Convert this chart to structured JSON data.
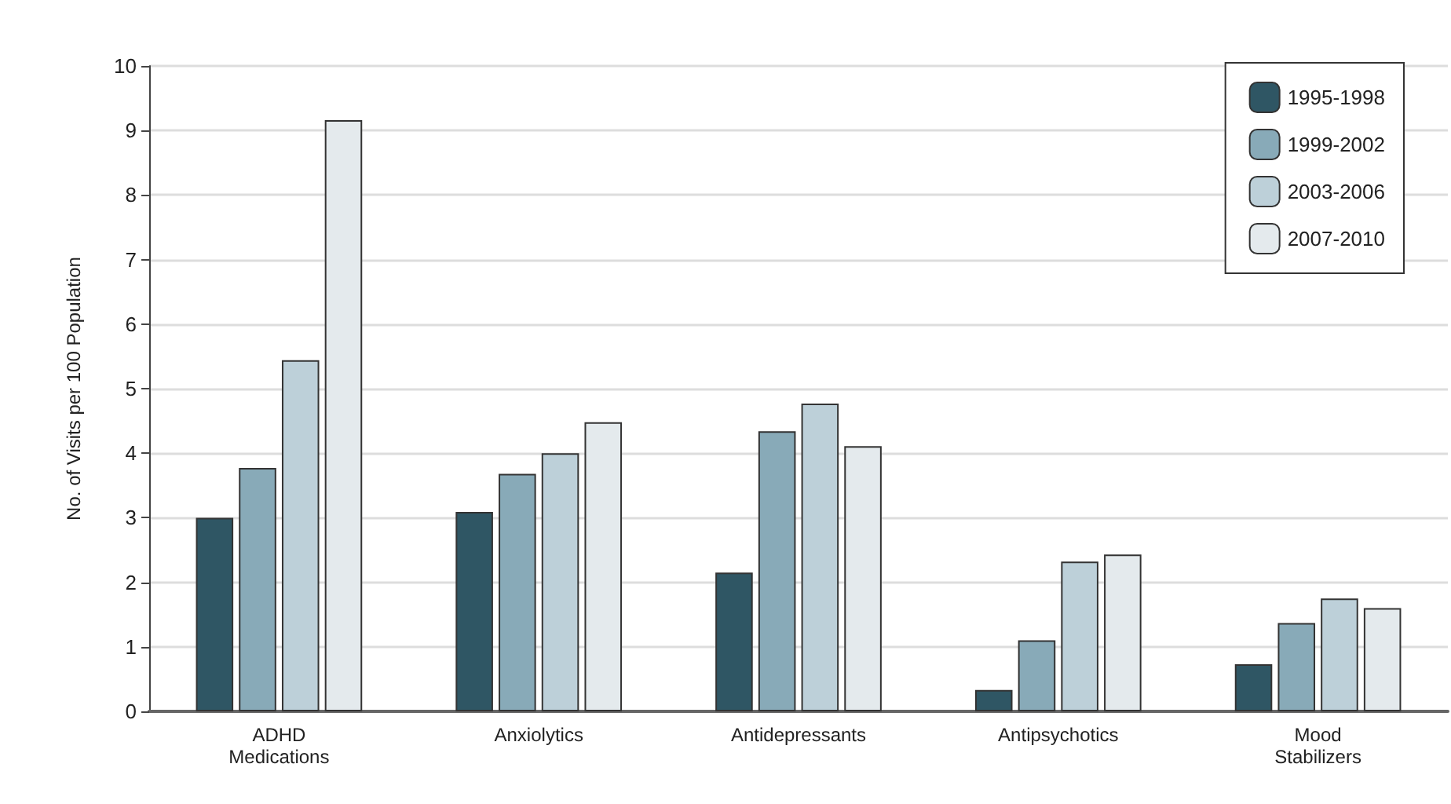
{
  "chart_data": {
    "type": "bar",
    "ylabel": "No. of Visits per 100 Population",
    "categories": [
      "ADHD\nMedications",
      "Anxiolytics",
      "Antidepressants",
      "Antipsychotics",
      "Mood\nStabilizers"
    ],
    "series": [
      {
        "name": "1995-1998",
        "color": "#2f5664",
        "values": [
          3.0,
          3.09,
          2.15,
          0.33,
          0.73
        ]
      },
      {
        "name": "1999-2002",
        "color": "#88aab8",
        "values": [
          3.77,
          3.68,
          4.34,
          1.1,
          1.37
        ]
      },
      {
        "name": "2003-2006",
        "color": "#bdd0d9",
        "values": [
          5.44,
          4.0,
          4.77,
          2.32,
          1.75
        ]
      },
      {
        "name": "2007-2010",
        "color": "#e4eaed",
        "values": [
          9.16,
          4.48,
          4.11,
          2.43,
          1.6
        ]
      }
    ],
    "ylim": [
      0,
      10
    ],
    "yticks": [
      0,
      1,
      2,
      3,
      4,
      5,
      6,
      7,
      8,
      9,
      10
    ],
    "grid": "y",
    "legend": "top right"
  }
}
